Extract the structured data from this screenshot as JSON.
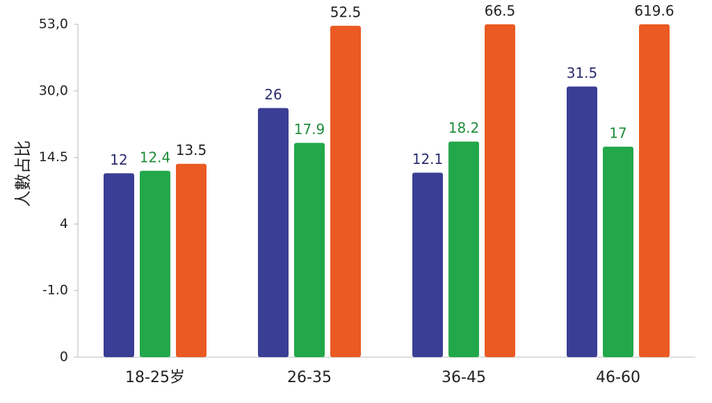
{
  "chart_data": {
    "type": "bar",
    "y_label": "人數占比",
    "categories": [
      "18-25岁",
      "26-35",
      "36-45",
      "46-60"
    ],
    "series": [
      {
        "name": "blue",
        "color": "#3a3e94",
        "label_color": "#2a2d6e",
        "values": [
          12.0,
          26.0,
          12.1,
          31.5
        ]
      },
      {
        "name": "green",
        "color": "#22a84a",
        "label_color": "#1f8c3a",
        "values": [
          12.4,
          17.9,
          18.2,
          17
        ]
      },
      {
        "name": "orange",
        "color": "#ea5a22",
        "label_color": "#222222",
        "values": [
          13.5,
          52.5,
          66.5,
          619.6
        ]
      }
    ],
    "yticks": [
      0,
      {
        "value": -1.0,
        "label": "-1.0"
      },
      4,
      14.5,
      {
        "value": 30.0,
        "label": "30,0"
      },
      {
        "value": 53.0,
        "label": "53,0"
      }
    ]
  }
}
